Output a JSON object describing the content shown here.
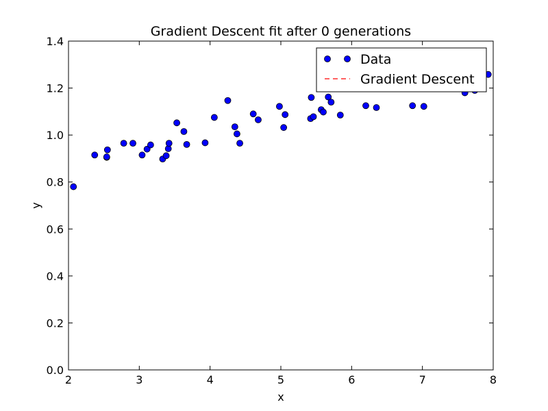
{
  "chart_data": {
    "type": "scatter",
    "title": "Gradient Descent fit after 0 generations",
    "xlabel": "x",
    "ylabel": "y",
    "xlim": [
      2,
      8
    ],
    "ylim": [
      0.0,
      1.4
    ],
    "xticks": [
      "2",
      "3",
      "4",
      "5",
      "6",
      "7",
      "8"
    ],
    "yticks": [
      "0.0",
      "0.2",
      "0.4",
      "0.6",
      "0.8",
      "1.0",
      "1.2",
      "1.4"
    ],
    "grid": false,
    "legend_position": "top-right",
    "series": [
      {
        "name": "Data",
        "kind": "scatter",
        "color": "#0000ff",
        "points": [
          [
            2.07,
            0.78
          ],
          [
            2.37,
            0.915
          ],
          [
            2.54,
            0.905
          ],
          [
            2.54,
            0.907
          ],
          [
            2.55,
            0.937
          ],
          [
            2.78,
            0.965
          ],
          [
            2.91,
            0.965
          ],
          [
            3.04,
            0.915
          ],
          [
            3.11,
            0.94
          ],
          [
            3.16,
            0.958
          ],
          [
            3.33,
            0.898
          ],
          [
            3.38,
            0.912
          ],
          [
            3.41,
            0.942
          ],
          [
            3.42,
            0.965
          ],
          [
            3.53,
            1.052
          ],
          [
            3.63,
            1.015
          ],
          [
            3.67,
            0.96
          ],
          [
            3.93,
            0.967
          ],
          [
            4.06,
            1.075
          ],
          [
            4.25,
            1.147
          ],
          [
            4.35,
            1.035
          ],
          [
            4.38,
            1.005
          ],
          [
            4.42,
            0.965
          ],
          [
            4.61,
            1.09
          ],
          [
            4.68,
            1.065
          ],
          [
            4.98,
            1.122
          ],
          [
            5.04,
            1.032
          ],
          [
            5.06,
            1.087
          ],
          [
            5.42,
            1.07
          ],
          [
            5.43,
            1.16
          ],
          [
            5.46,
            1.078
          ],
          [
            5.57,
            1.108
          ],
          [
            5.6,
            1.098
          ],
          [
            5.67,
            1.162
          ],
          [
            5.71,
            1.14
          ],
          [
            5.84,
            1.085
          ],
          [
            6.2,
            1.125
          ],
          [
            6.35,
            1.117
          ],
          [
            6.86,
            1.125
          ],
          [
            7.02,
            1.122
          ],
          [
            7.6,
            1.18
          ],
          [
            7.74,
            1.19
          ],
          [
            7.93,
            1.258
          ]
        ]
      },
      {
        "name": "Gradient Descent",
        "kind": "line",
        "style": "dashed",
        "color": "#ff0000",
        "points": []
      }
    ]
  }
}
